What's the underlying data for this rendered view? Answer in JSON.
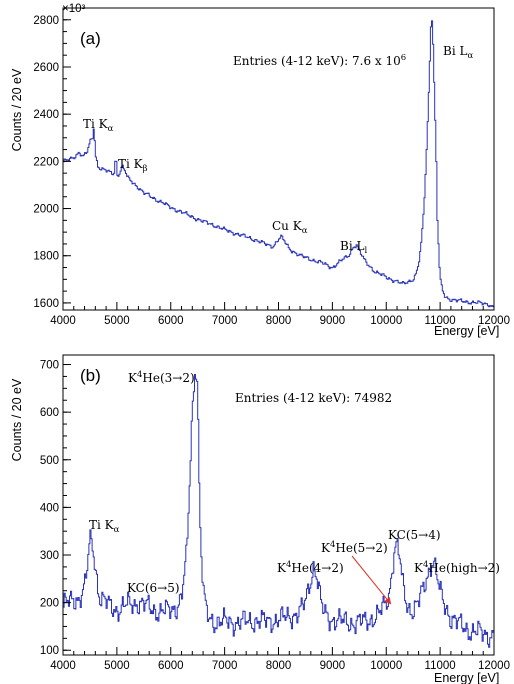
{
  "colors": {
    "histogram": "#2a33b8",
    "arrow": "#e0302a",
    "axis": "#000000"
  },
  "chart_data": [
    {
      "panel": "(a)",
      "type": "line",
      "style": "step histogram",
      "xlabel": "Energy [eV]",
      "ylabel": "Counts / 20 eV",
      "y_multiplier": "×10³",
      "xlim": [
        4000,
        12000
      ],
      "ylim": [
        1570,
        2850
      ],
      "xticks": [
        "4000",
        "5000",
        "6000",
        "7000",
        "8000",
        "9000",
        "10000",
        "11000",
        "12000"
      ],
      "yticks": [
        "1600",
        "1800",
        "2000",
        "2200",
        "2400",
        "2600",
        "2800"
      ],
      "ytick_values": [
        1600,
        1800,
        2000,
        2200,
        2400,
        2600,
        2800
      ],
      "entries_label": "Entries (4-12 keV): 7.6 x 10",
      "entries_exp": "6",
      "annotations": [
        {
          "main": "Ti K",
          "sub": "α"
        },
        {
          "main": "Ti K",
          "sub": "β"
        },
        {
          "main": "Cu K",
          "sub": "α"
        },
        {
          "main": "Bi L",
          "sub": "l"
        },
        {
          "main": "Bi L",
          "sub": "α"
        }
      ],
      "x": [
        4000,
        4100,
        4200,
        4300,
        4380,
        4450,
        4500,
        4550,
        4580,
        4600,
        4650,
        4700,
        4800,
        4900,
        4960,
        4980,
        5000,
        5050,
        5100,
        5150,
        5200,
        5250,
        5300,
        5400,
        5500,
        5600,
        5800,
        6000,
        6200,
        6400,
        6600,
        6800,
        7000,
        7200,
        7400,
        7600,
        7800,
        7900,
        8000,
        8050,
        8100,
        8200,
        8300,
        8400,
        8600,
        8800,
        9000,
        9200,
        9300,
        9400,
        9450,
        9500,
        9600,
        9800,
        10000,
        10200,
        10300,
        10400,
        10500,
        10550,
        10600,
        10650,
        10700,
        10750,
        10800,
        10830,
        10850,
        10870,
        10900,
        10930,
        10950,
        10980,
        11000,
        11050,
        11100,
        11200,
        11300,
        11500,
        11700,
        11900,
        12000
      ],
      "y": [
        2200,
        2205,
        2215,
        2240,
        2220,
        2240,
        2280,
        2300,
        2360,
        2230,
        2180,
        2170,
        2160,
        2150,
        2150,
        2255,
        2140,
        2150,
        2180,
        2160,
        2130,
        2120,
        2110,
        2090,
        2065,
        2055,
        2030,
        2005,
        1985,
        1965,
        1945,
        1930,
        1910,
        1895,
        1880,
        1865,
        1845,
        1840,
        1870,
        1880,
        1865,
        1830,
        1815,
        1800,
        1785,
        1770,
        1750,
        1785,
        1800,
        1840,
        1845,
        1820,
        1780,
        1730,
        1710,
        1690,
        1680,
        1690,
        1700,
        1720,
        1760,
        1850,
        2000,
        2250,
        2550,
        2780,
        2800,
        2700,
        2450,
        2200,
        1950,
        1800,
        1700,
        1650,
        1625,
        1615,
        1610,
        1605,
        1600,
        1595,
        1580
      ]
    },
    {
      "panel": "(b)",
      "type": "line",
      "style": "step histogram",
      "xlabel": "Energy [eV]",
      "ylabel": "Counts / 20 eV",
      "xlim": [
        4000,
        12000
      ],
      "ylim": [
        90,
        720
      ],
      "xticks": [
        "4000",
        "5000",
        "6000",
        "7000",
        "8000",
        "9000",
        "10000",
        "11000",
        "12000"
      ],
      "yticks": [
        "100",
        "200",
        "300",
        "400",
        "500",
        "600",
        "700"
      ],
      "ytick_values": [
        100,
        200,
        300,
        400,
        500,
        600,
        700
      ],
      "entries_label": "Entries (4-12 keV): 74982",
      "annotations": [
        {
          "main": "Ti K",
          "sub": "α"
        },
        {
          "main": "KC(6→5)"
        },
        {
          "main": "K",
          "sup": "4",
          "rest": "He(3→2)"
        },
        {
          "main": "K",
          "sup": "4",
          "rest": "He(4→2)"
        },
        {
          "main": "K",
          "sup": "4",
          "rest": "He(5→2)"
        },
        {
          "main": "KC(5→4)"
        },
        {
          "main": "K",
          "sup": "4",
          "rest": "He(high→2)"
        }
      ],
      "x": [
        4000,
        4100,
        4200,
        4300,
        4400,
        4450,
        4500,
        4550,
        4600,
        4650,
        4700,
        4800,
        4900,
        5000,
        5200,
        5400,
        5600,
        5800,
        6000,
        6100,
        6200,
        6300,
        6350,
        6400,
        6450,
        6480,
        6500,
        6520,
        6550,
        6600,
        6650,
        6700,
        6800,
        7000,
        7200,
        7400,
        7600,
        7800,
        8000,
        8200,
        8400,
        8500,
        8600,
        8650,
        8700,
        8750,
        8800,
        8900,
        9000,
        9200,
        9400,
        9600,
        9800,
        9900,
        10000,
        10050,
        10100,
        10150,
        10200,
        10250,
        10300,
        10400,
        10500,
        10600,
        10700,
        10800,
        10850,
        10900,
        10950,
        11000,
        11100,
        11200,
        11400,
        11600,
        11800,
        12000
      ],
      "y": [
        195,
        200,
        205,
        210,
        230,
        270,
        330,
        320,
        280,
        230,
        210,
        200,
        190,
        185,
        195,
        200,
        190,
        180,
        185,
        190,
        210,
        300,
        450,
        600,
        690,
        700,
        650,
        500,
        350,
        230,
        185,
        170,
        160,
        160,
        158,
        160,
        162,
        160,
        165,
        170,
        180,
        200,
        250,
        275,
        265,
        230,
        190,
        170,
        165,
        160,
        158,
        160,
        170,
        180,
        200,
        215,
        260,
        310,
        320,
        295,
        240,
        190,
        185,
        200,
        230,
        270,
        290,
        280,
        250,
        220,
        190,
        170,
        150,
        140,
        135,
        130
      ]
    }
  ]
}
